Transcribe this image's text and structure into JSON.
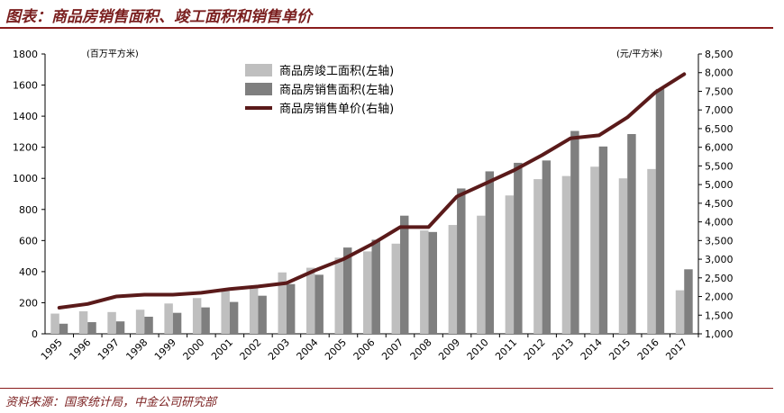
{
  "header": {
    "title": "图表：商品房销售面积、竣工面积和销售单价"
  },
  "footer": {
    "source": "资料来源：国家统计局，中金公司研究部"
  },
  "chart_data": {
    "type": "bar",
    "categories": [
      "1995",
      "1996",
      "1997",
      "1998",
      "1999",
      "2000",
      "2001",
      "2002",
      "2003",
      "2004",
      "2005",
      "2006",
      "2007",
      "2008",
      "2009",
      "2010",
      "2011",
      "2012",
      "2013",
      "2014",
      "2015",
      "2016",
      "2017"
    ],
    "left_unit": "(百万平方米)",
    "right_unit": "(元/平方米)",
    "ylim": [
      0,
      1800
    ],
    "y2lim": [
      1000,
      8500
    ],
    "yticks": [
      "0",
      "200",
      "400",
      "600",
      "800",
      "1000",
      "1200",
      "1400",
      "1600",
      "1800"
    ],
    "y2ticks": [
      "1,000",
      "1,500",
      "2,000",
      "2,500",
      "3,000",
      "3,500",
      "4,000",
      "4,500",
      "5,000",
      "5,500",
      "6,000",
      "6,500",
      "7,000",
      "7,500",
      "8,000",
      "8,500"
    ],
    "legend_position": "top-center",
    "series": [
      {
        "name": "商品房竣工面积(左轴)",
        "type": "bar",
        "color": "#bfbfbf",
        "values": [
          130,
          145,
          140,
          155,
          195,
          230,
          275,
          300,
          395,
          425,
          490,
          530,
          580,
          665,
          700,
          760,
          890,
          995,
          1015,
          1075,
          1000,
          1060,
          280
        ]
      },
      {
        "name": "商品房销售面积(左轴)",
        "type": "bar",
        "color": "#7f7f7f",
        "values": [
          65,
          75,
          80,
          110,
          135,
          170,
          205,
          245,
          320,
          380,
          555,
          605,
          760,
          655,
          935,
          1045,
          1100,
          1115,
          1305,
          1205,
          1285,
          1575,
          415
        ]
      },
      {
        "name": "商品房销售单价(右轴)",
        "type": "line",
        "axis": "right",
        "color": "#5a1a1a",
        "values": [
          1700,
          1800,
          2000,
          2050,
          2050,
          2100,
          2200,
          2270,
          2360,
          2700,
          3000,
          3400,
          3860,
          3860,
          4680,
          5030,
          5380,
          5790,
          6240,
          6320,
          6800,
          7480,
          7960
        ]
      }
    ]
  }
}
